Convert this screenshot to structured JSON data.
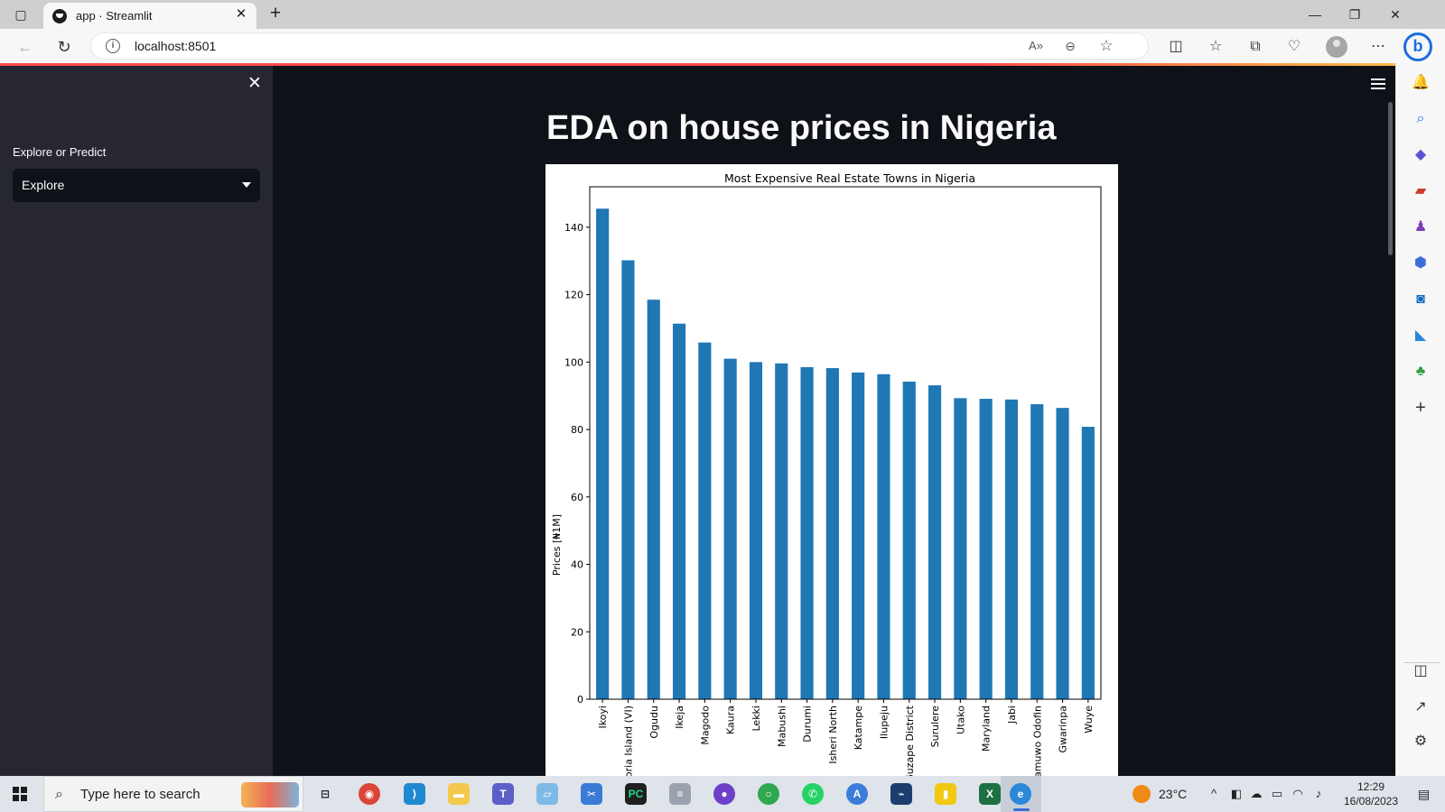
{
  "browser": {
    "tab_title": "app · Streamlit",
    "url": "localhost:8501"
  },
  "sidebar": {
    "select_label": "Explore or Predict",
    "select_value": "Explore"
  },
  "main": {
    "page_title": "EDA on house prices in Nigeria"
  },
  "chart_data": {
    "type": "bar",
    "title": "Most Expensive Real Estate Towns in Nigeria",
    "xlabel": "",
    "ylabel": "Prices [₦1M]",
    "categories": [
      "Ikoyi",
      "Victoria Island (VI)",
      "Ogudu",
      "Ikeja",
      "Magodo",
      "Kaura",
      "Lekki",
      "Mabushi",
      "Durumi",
      "Isheri North",
      "Katampe",
      "Ilupeju",
      "Guzape District",
      "Surulere",
      "Utako",
      "Maryland",
      "Jabi",
      "Lamuwo Odofin",
      "Gwarinpa",
      "Wuye"
    ],
    "values": [
      145.5,
      130.2,
      118.5,
      111.4,
      105.8,
      101.0,
      100.0,
      99.6,
      98.5,
      98.2,
      96.9,
      96.4,
      94.2,
      93.1,
      89.3,
      89.1,
      88.9,
      87.5,
      86.4,
      80.8
    ],
    "ylim": [
      0,
      152
    ],
    "yticks": [
      0,
      20,
      40,
      60,
      80,
      100,
      120,
      140
    ],
    "bar_color": "#1f77b4",
    "grid": false,
    "legend": "none"
  },
  "taskbar": {
    "search_placeholder": "Type here to search",
    "weather": "23°C",
    "time": "12:29",
    "date": "16/08/2023"
  }
}
